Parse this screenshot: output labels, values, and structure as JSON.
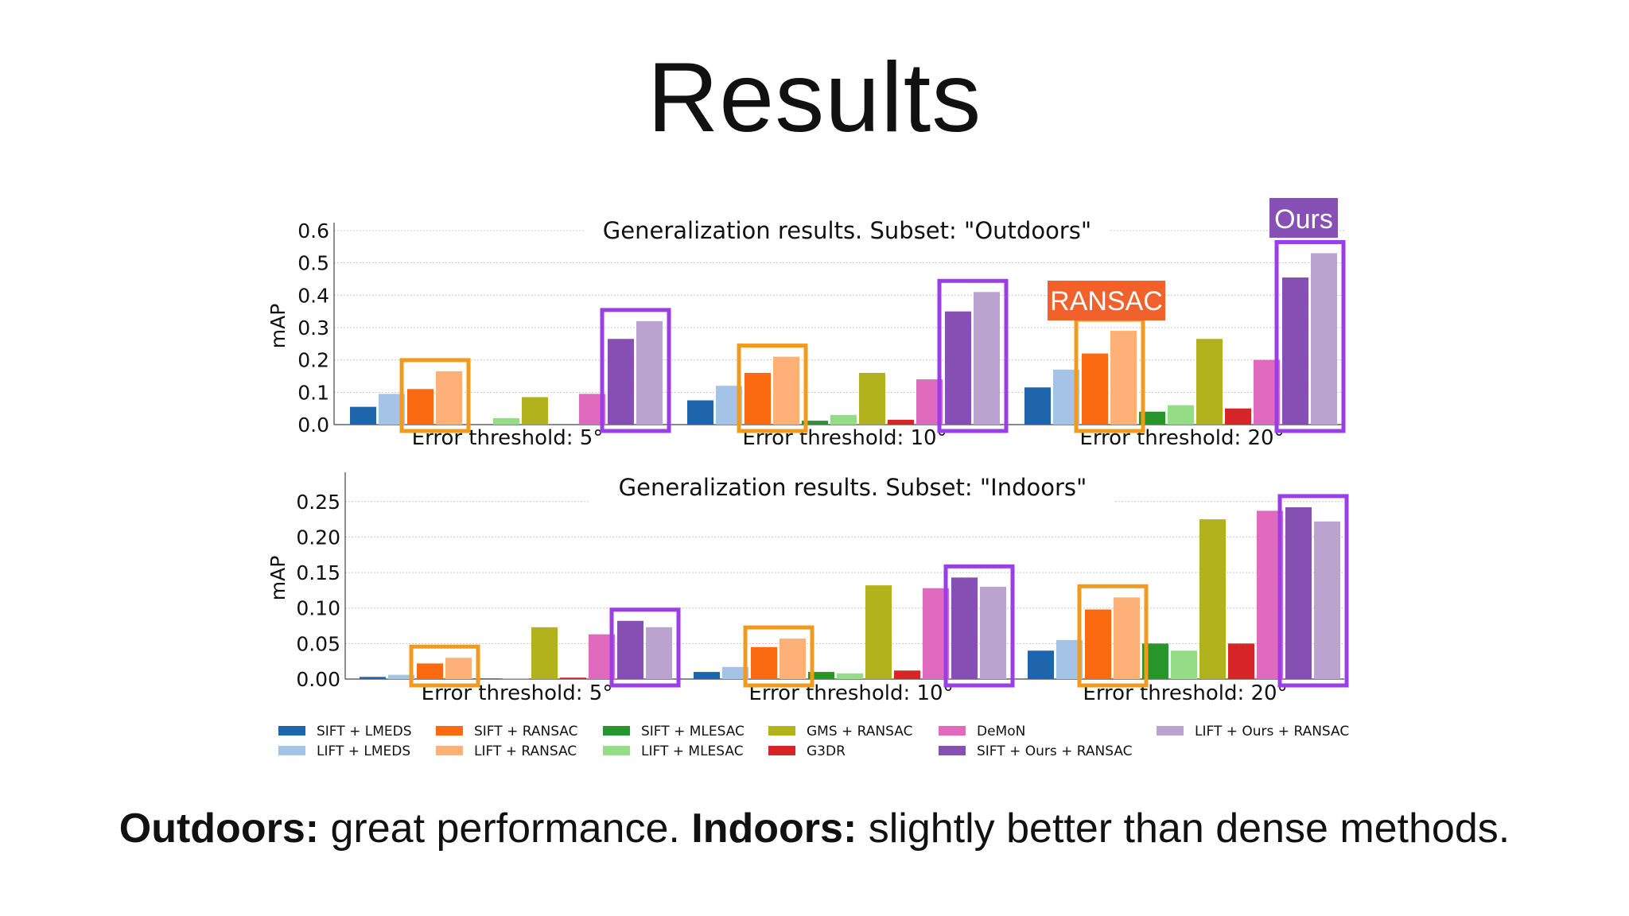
{
  "slide": {
    "title": "Results",
    "caption_bold_1": "Outdoors:",
    "caption_text_1": " great performance. ",
    "caption_bold_2": "Indoors:",
    "caption_text_2": " slightly better than dense methods."
  },
  "annotations": {
    "ransac_tag": "RANSAC",
    "ours_tag": "Ours",
    "ransac_color": "#f0612b",
    "ours_color": "#8650b4",
    "ransac_box_color": "#f29a1b",
    "ours_box_color": "#9b3ee8"
  },
  "series_meta": [
    {
      "name": "SIFT + LMEDS",
      "color": "#1f65ab"
    },
    {
      "name": "LIFT + LMEDS",
      "color": "#a5c3e6"
    },
    {
      "name": "SIFT + RANSAC",
      "color": "#fb6a10"
    },
    {
      "name": "LIFT + RANSAC",
      "color": "#fdb077"
    },
    {
      "name": "SIFT + MLESAC",
      "color": "#28952c"
    },
    {
      "name": "LIFT + MLESAC",
      "color": "#95dc86"
    },
    {
      "name": "GMS + RANSAC",
      "color": "#b2b21d"
    },
    {
      "name": "G3DR",
      "color": "#d72427"
    },
    {
      "name": "DeMoN",
      "color": "#e06bbe"
    },
    {
      "name": "SIFT + Ours + RANSAC",
      "color": "#8550b2"
    },
    {
      "name": "LIFT + Ours + RANSAC",
      "color": "#baa3cf"
    }
  ],
  "chart_data": [
    {
      "type": "bar",
      "title": "Generalization results. Subset: \"Outdoors\"",
      "ylabel": "mAP",
      "ylim": [
        0,
        0.6
      ],
      "yticks": [
        "0.0",
        "0.1",
        "0.2",
        "0.3",
        "0.4",
        "0.5",
        "0.6"
      ],
      "grid": true,
      "categories": [
        "Error threshold: 5°",
        "Error threshold: 10°",
        "Error threshold: 20°"
      ],
      "series": [
        {
          "name": "SIFT + LMEDS",
          "values": [
            0.055,
            0.075,
            0.115
          ]
        },
        {
          "name": "LIFT + LMEDS",
          "values": [
            0.095,
            0.12,
            0.17
          ]
        },
        {
          "name": "SIFT + RANSAC",
          "values": [
            0.11,
            0.16,
            0.22
          ]
        },
        {
          "name": "LIFT + RANSAC",
          "values": [
            0.165,
            0.21,
            0.29
          ]
        },
        {
          "name": "SIFT + MLESAC",
          "values": [
            0.0,
            0.012,
            0.04
          ]
        },
        {
          "name": "LIFT + MLESAC",
          "values": [
            0.02,
            0.03,
            0.06
          ]
        },
        {
          "name": "GMS + RANSAC",
          "values": [
            0.085,
            0.16,
            0.265
          ]
        },
        {
          "name": "G3DR",
          "values": [
            0.0,
            0.015,
            0.05
          ]
        },
        {
          "name": "DeMoN",
          "values": [
            0.095,
            0.14,
            0.2
          ]
        },
        {
          "name": "SIFT + Ours + RANSAC",
          "values": [
            0.265,
            0.35,
            0.455
          ]
        },
        {
          "name": "LIFT + Ours + RANSAC",
          "values": [
            0.32,
            0.41,
            0.53
          ]
        }
      ]
    },
    {
      "type": "bar",
      "title": "Generalization results. Subset: \"Indoors\"",
      "ylabel": "mAP",
      "ylim": [
        0,
        0.28
      ],
      "yticks": [
        "0.00",
        "0.05",
        "0.10",
        "0.15",
        "0.20",
        "0.25"
      ],
      "grid": true,
      "categories": [
        "Error threshold: 5°",
        "Error threshold: 10°",
        "Error threshold: 20°"
      ],
      "series": [
        {
          "name": "SIFT + LMEDS",
          "values": [
            0.003,
            0.01,
            0.04
          ]
        },
        {
          "name": "LIFT + LMEDS",
          "values": [
            0.006,
            0.017,
            0.055
          ]
        },
        {
          "name": "SIFT + RANSAC",
          "values": [
            0.022,
            0.045,
            0.098
          ]
        },
        {
          "name": "LIFT + RANSAC",
          "values": [
            0.03,
            0.057,
            0.115
          ]
        },
        {
          "name": "SIFT + MLESAC",
          "values": [
            0.001,
            0.01,
            0.05
          ]
        },
        {
          "name": "LIFT + MLESAC",
          "values": [
            0.001,
            0.008,
            0.04
          ]
        },
        {
          "name": "GMS + RANSAC",
          "values": [
            0.073,
            0.132,
            0.225
          ]
        },
        {
          "name": "G3DR",
          "values": [
            0.002,
            0.012,
            0.05
          ]
        },
        {
          "name": "DeMoN",
          "values": [
            0.063,
            0.128,
            0.237
          ]
        },
        {
          "name": "SIFT + Ours + RANSAC",
          "values": [
            0.082,
            0.143,
            0.242
          ]
        },
        {
          "name": "LIFT + Ours + RANSAC",
          "values": [
            0.073,
            0.13,
            0.222
          ]
        }
      ]
    }
  ]
}
